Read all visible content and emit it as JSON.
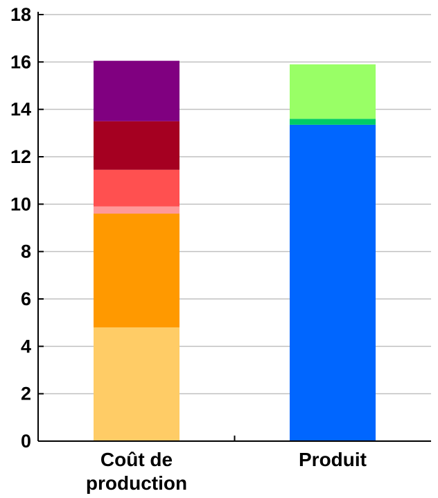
{
  "chart_data": {
    "type": "bar",
    "stacked": true,
    "title": "",
    "xlabel": "",
    "ylabel": "",
    "ylim": [
      0,
      18
    ],
    "yticks": [
      0,
      2,
      4,
      6,
      8,
      10,
      12,
      14,
      16,
      18
    ],
    "grid": true,
    "legend": "none",
    "categories": [
      {
        "lines": [
          "Coût de",
          "production"
        ]
      },
      {
        "lines": [
          "Produit"
        ]
      }
    ],
    "stacks": [
      [
        {
          "value": 4.8,
          "color": "#FFCC66"
        },
        {
          "value": 4.8,
          "color": "#FF9900"
        },
        {
          "value": 0.3,
          "color": "#FF9999"
        },
        {
          "value": 1.55,
          "color": "#FF5050"
        },
        {
          "value": 2.05,
          "color": "#A50021"
        },
        {
          "value": 2.55,
          "color": "#800080"
        }
      ],
      [
        {
          "value": 13.35,
          "color": "#0066FF"
        },
        {
          "value": 0.25,
          "color": "#00CC66"
        },
        {
          "value": 2.3,
          "color": "#99FF66"
        }
      ]
    ]
  }
}
